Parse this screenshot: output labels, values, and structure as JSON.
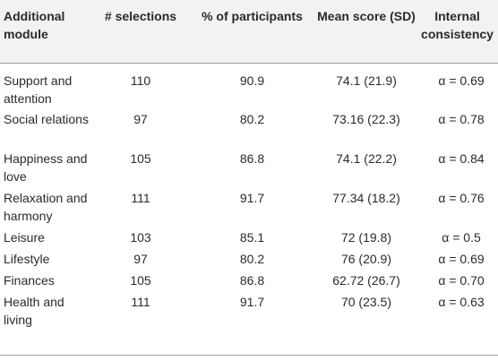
{
  "table": {
    "headers": [
      "Additional module",
      "# selections",
      "% of participants",
      "Mean score (SD)",
      "Internal consistency"
    ],
    "rows": [
      {
        "module": "Support and attention",
        "selections": "110",
        "percent": "90.9",
        "mean": "74.1 (21.9)",
        "alpha": "α = 0.69"
      },
      {
        "module": "Social relations",
        "selections": "97",
        "percent": "80.2",
        "mean": "73.16 (22.3)",
        "alpha": "α = 0.78"
      },
      {
        "module": "Happiness and love",
        "selections": "105",
        "percent": "86.8",
        "mean": "74.1 (22.2)",
        "alpha": "α = 0.84"
      },
      {
        "module": "Relaxation and harmony",
        "selections": "111",
        "percent": "91.7",
        "mean": "77.34 (18.2)",
        "alpha": "α = 0.76"
      },
      {
        "module": "Leisure",
        "selections": "103",
        "percent": "85.1",
        "mean": "72 (19.8)",
        "alpha": "α = 0.5"
      },
      {
        "module": "Lifestyle",
        "selections": "97",
        "percent": "80.2",
        "mean": "76 (20.9)",
        "alpha": "α = 0.69"
      },
      {
        "module": "Finances",
        "selections": "105",
        "percent": "86.8",
        "mean": "62.72 (26.7)",
        "alpha": "α = 0.70"
      },
      {
        "module": "Health and living",
        "selections": "111",
        "percent": "91.7",
        "mean": "70 (23.5)",
        "alpha": "α = 0.63"
      }
    ]
  }
}
